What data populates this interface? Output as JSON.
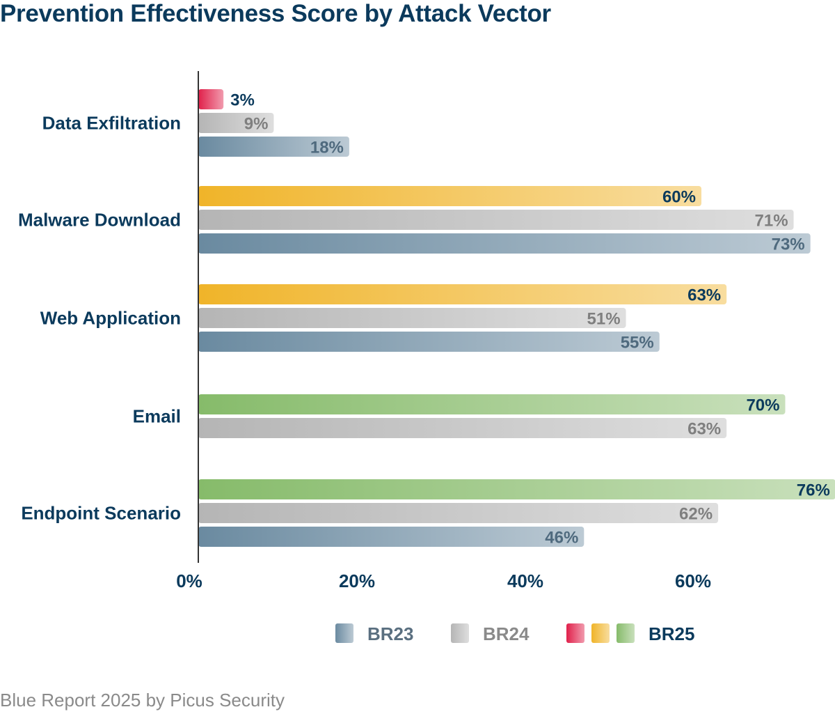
{
  "chart_data": {
    "type": "bar",
    "orientation": "horizontal",
    "title": "Prevention Effectiveness Score by Attack Vector",
    "xlabel": "",
    "ylabel": "",
    "x_ticks": [
      "0%",
      "20%",
      "40%",
      "60%"
    ],
    "xlim": [
      0,
      76
    ],
    "grid": false,
    "categories": [
      "Data Exfiltration",
      "Malware Download",
      "Web Application",
      "Email",
      "Endpoint Scenario"
    ],
    "series": [
      {
        "name": "BR25",
        "values": [
          3,
          60,
          63,
          70,
          76
        ],
        "colors": [
          "#e0204a",
          "#f0b429",
          "#f0b429",
          "#86bb6a",
          "#86bb6a"
        ],
        "label_color": "#0b3a5c"
      },
      {
        "name": "BR24",
        "values": [
          9,
          71,
          51,
          63,
          62
        ],
        "color": "#b5b5b5",
        "label_color": "#7f7f7f"
      },
      {
        "name": "BR23",
        "values": [
          18,
          73,
          55,
          null,
          46
        ],
        "color": "#6a8aa0",
        "label_color": "#4f6a7e"
      }
    ],
    "value_labels": {
      "BR25": [
        "3%",
        "60%",
        "63%",
        "70%",
        "76%"
      ],
      "BR24": [
        "9%",
        "71%",
        "51%",
        "63%",
        "62%"
      ],
      "BR23": [
        "18%",
        "73%",
        "55%",
        "",
        "46%"
      ]
    },
    "legend": {
      "position": "bottom-center",
      "items": [
        {
          "label": "BR23",
          "swatches": [
            "#6a8aa0"
          ],
          "label_color": "#5a6f80"
        },
        {
          "label": "BR24",
          "swatches": [
            "#b5b5b5"
          ],
          "label_color": "#8a8a8a"
        },
        {
          "label": "BR25",
          "swatches": [
            "#e0204a",
            "#f0b429",
            "#86bb6a"
          ],
          "label_color": "#0b3a5c"
        }
      ]
    }
  },
  "footer": "Blue Report 2025 by Picus Security"
}
